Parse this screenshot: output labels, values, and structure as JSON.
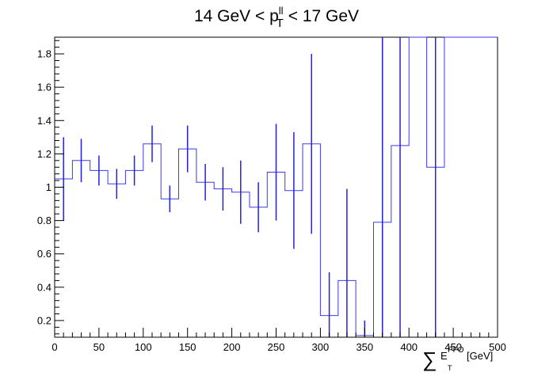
{
  "title": {
    "prefix": "14 GeV < p",
    "sup": "ll",
    "sub": "T",
    "suffix": "< 17 GeV"
  },
  "xaxis_title": {
    "sum": "∑",
    "base": "E",
    "sup": "PFO",
    "sub": "T",
    "unit": "[GeV]"
  },
  "colors": {
    "line": "#3a3af0",
    "errorbar": "#2222dd",
    "axis": "#000000"
  },
  "chart_data": {
    "type": "line",
    "style": "step histogram with error bars",
    "x_tick_labels": [
      "0",
      "50",
      "100",
      "150",
      "200",
      "250",
      "300",
      "350",
      "400",
      "450",
      "500"
    ],
    "y_tick_labels": [
      "0.2",
      "0.4",
      "0.6",
      "0.8",
      "1",
      "1.2",
      "1.4",
      "1.6",
      "1.8"
    ],
    "xlim": [
      0,
      500
    ],
    "ylim": [
      0.1,
      1.9
    ],
    "bin_width": 20,
    "bins": [
      {
        "x": 0,
        "y": 1.05,
        "err": 0.25
      },
      {
        "x": 20,
        "y": 1.16,
        "err": 0.13
      },
      {
        "x": 40,
        "y": 1.1,
        "err": 0.09
      },
      {
        "x": 60,
        "y": 1.02,
        "err": 0.09
      },
      {
        "x": 80,
        "y": 1.1,
        "err": 0.09
      },
      {
        "x": 100,
        "y": 1.26,
        "err": 0.11
      },
      {
        "x": 120,
        "y": 0.93,
        "err": 0.08
      },
      {
        "x": 140,
        "y": 1.23,
        "err": 0.14
      },
      {
        "x": 160,
        "y": 1.03,
        "err": 0.11
      },
      {
        "x": 180,
        "y": 0.99,
        "err": 0.13
      },
      {
        "x": 200,
        "y": 0.97,
        "err": 0.19
      },
      {
        "x": 220,
        "y": 0.88,
        "err": 0.15
      },
      {
        "x": 240,
        "y": 1.09,
        "err": 0.29
      },
      {
        "x": 260,
        "y": 0.98,
        "err": 0.35
      },
      {
        "x": 280,
        "y": 1.26,
        "err": 0.54
      },
      {
        "x": 300,
        "y": 0.23,
        "err": 0.26
      },
      {
        "x": 320,
        "y": 0.44,
        "err": 0.55
      },
      {
        "x": 340,
        "y": 0.11,
        "err": 0.09
      },
      {
        "x": 360,
        "y": 0.79,
        "err": 1.4
      },
      {
        "x": 380,
        "y": 1.25,
        "err": 1.4
      },
      {
        "x": 400,
        "y": 1.9,
        "err": 0.0
      },
      {
        "x": 420,
        "y": 1.12,
        "err": 1.4
      },
      {
        "x": 440,
        "y": 1.9,
        "err": 0.0
      },
      {
        "x": 460,
        "y": 1.9,
        "err": 0.0
      },
      {
        "x": 480,
        "y": 1.9,
        "err": 0.0
      }
    ],
    "grid": false,
    "legend": "none"
  }
}
